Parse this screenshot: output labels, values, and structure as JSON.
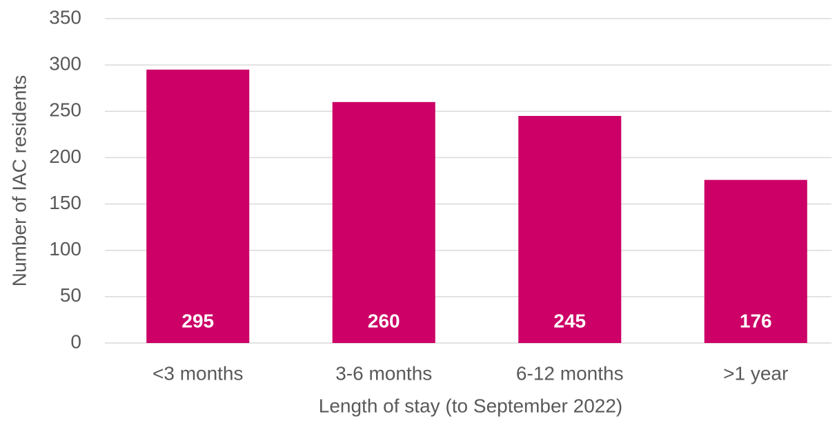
{
  "chart_data": {
    "type": "bar",
    "x_label": "Length of stay (to September 2022)",
    "y_label": "Number of IAC residents",
    "categories": [
      "<3 months",
      "3-6 months",
      "6-12 months",
      ">1 year"
    ],
    "values": [
      295,
      260,
      245,
      176
    ],
    "color": "#cc0066",
    "ylim": [
      0,
      350
    ],
    "yticks": [
      0,
      50,
      100,
      150,
      200,
      250,
      300,
      350
    ],
    "grid": true
  }
}
